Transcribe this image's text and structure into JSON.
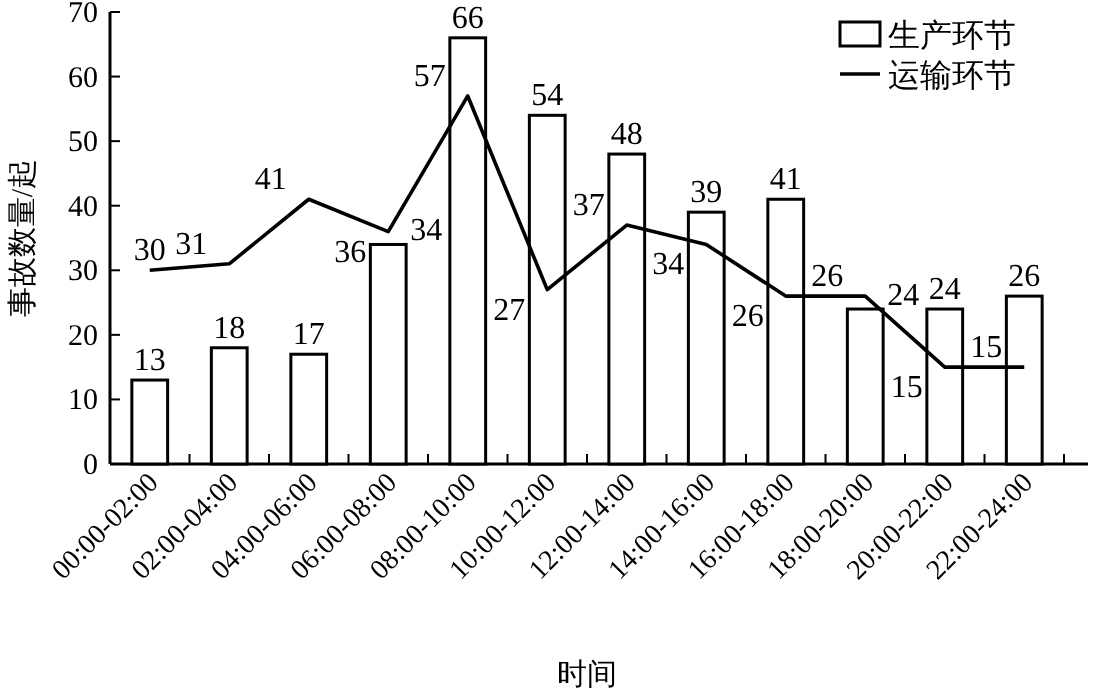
{
  "chart_data": {
    "type": "bar",
    "xlabel": "时间",
    "ylabel": "事故数量/起",
    "categories": [
      "00:00-02:00",
      "02:00-04:00",
      "04:00-06:00",
      "06:00-08:00",
      "08:00-10:00",
      "10:00-12:00",
      "12:00-14:00",
      "14:00-16:00",
      "16:00-18:00",
      "18:00-20:00",
      "20:00-22:00",
      "22:00-24:00"
    ],
    "series": [
      {
        "name": "生产环节",
        "type": "bar",
        "color": "#ffffff",
        "values": [
          13,
          18,
          17,
          34,
          66,
          54,
          48,
          39,
          41,
          24,
          24,
          26
        ]
      },
      {
        "name": "运输环节",
        "type": "line",
        "color": "#000000",
        "values": [
          30,
          31,
          41,
          36,
          57,
          27,
          37,
          34,
          26,
          26,
          15,
          15
        ]
      }
    ],
    "ylim": [
      0,
      70
    ],
    "yticks": [
      0,
      10,
      20,
      30,
      40,
      50,
      60,
      70
    ],
    "data_labels": true,
    "legend": "top right"
  }
}
